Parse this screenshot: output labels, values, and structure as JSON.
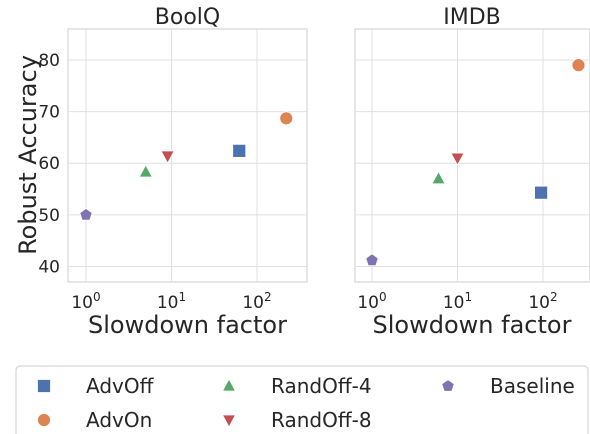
{
  "chart_data": [
    {
      "type": "scatter",
      "title": "BoolQ",
      "xlabel": "Slowdown factor",
      "ylabel": "Robust Accuracy",
      "xscale": "log",
      "xticks": [
        "10^0",
        "10^1",
        "10^2"
      ],
      "yticks": [
        40,
        50,
        60,
        70,
        80
      ],
      "ylim": [
        37,
        86
      ],
      "grid": true,
      "series": [
        {
          "name": "AdvOff",
          "x": 62,
          "y": 62.4
        },
        {
          "name": "AdvOn",
          "x": 220,
          "y": 68.7
        },
        {
          "name": "RandOff-4",
          "x": 5,
          "y": 58.3
        },
        {
          "name": "RandOff-8",
          "x": 9,
          "y": 61.4
        },
        {
          "name": "Baseline",
          "x": 1,
          "y": 50.0
        }
      ]
    },
    {
      "type": "scatter",
      "title": "IMDB",
      "xlabel": "Slowdown factor",
      "ylabel": "",
      "xscale": "log",
      "xticks": [
        "10^0",
        "10^1",
        "10^2"
      ],
      "ylim": [
        37,
        86
      ],
      "grid": true,
      "series": [
        {
          "name": "AdvOff",
          "x": 95,
          "y": 54.3
        },
        {
          "name": "AdvOn",
          "x": 260,
          "y": 79.0
        },
        {
          "name": "RandOff-4",
          "x": 6,
          "y": 57.0
        },
        {
          "name": "RandOff-8",
          "x": 10,
          "y": 61.0
        },
        {
          "name": "Baseline",
          "x": 1,
          "y": 41.2
        }
      ]
    }
  ],
  "legend": {
    "placement": "bottom",
    "items": [
      {
        "label": "AdvOff",
        "marker": "square",
        "color": "#4C72B0"
      },
      {
        "label": "RandOff-4",
        "marker": "triangle-up",
        "color": "#55A868"
      },
      {
        "label": "Baseline",
        "marker": "pentagon",
        "color": "#8172B2"
      },
      {
        "label": "AdvOn",
        "marker": "circle",
        "color": "#DD8452"
      },
      {
        "label": "RandOff-8",
        "marker": "triangle-down",
        "color": "#C44E52"
      }
    ]
  }
}
